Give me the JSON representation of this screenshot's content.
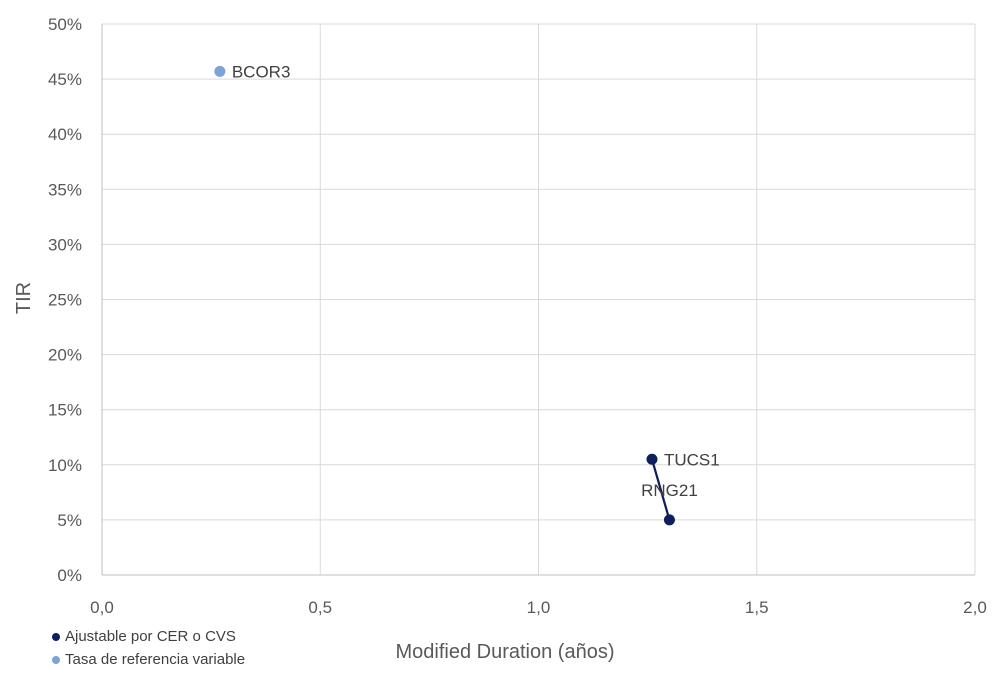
{
  "chart_data": {
    "type": "scatter",
    "title": "",
    "xlabel": "Modified Duration (años)",
    "ylabel": "TIR",
    "xlim": [
      0,
      2
    ],
    "ylim": [
      0,
      0.5
    ],
    "x_ticks": [
      "0,0",
      "0,5",
      "1,0",
      "1,5",
      "2,0"
    ],
    "y_ticks": [
      "0%",
      "5%",
      "10%",
      "15%",
      "20%",
      "25%",
      "30%",
      "35%",
      "40%",
      "45%",
      "50%"
    ],
    "grid": true,
    "legend_position": "bottom-left",
    "series": [
      {
        "name": "Ajustable por CER o CVS",
        "color": "#0d1f5c",
        "connected": true,
        "points": [
          {
            "label": "TUCS1",
            "x": 1.26,
            "y": 0.105
          },
          {
            "label": "RNG21",
            "x": 1.3,
            "y": 0.05
          }
        ]
      },
      {
        "name": "Tasa de referencia variable",
        "color": "#7ba3d6",
        "connected": false,
        "points": [
          {
            "label": "BCOR3",
            "x": 0.27,
            "y": 0.457
          }
        ]
      }
    ]
  }
}
